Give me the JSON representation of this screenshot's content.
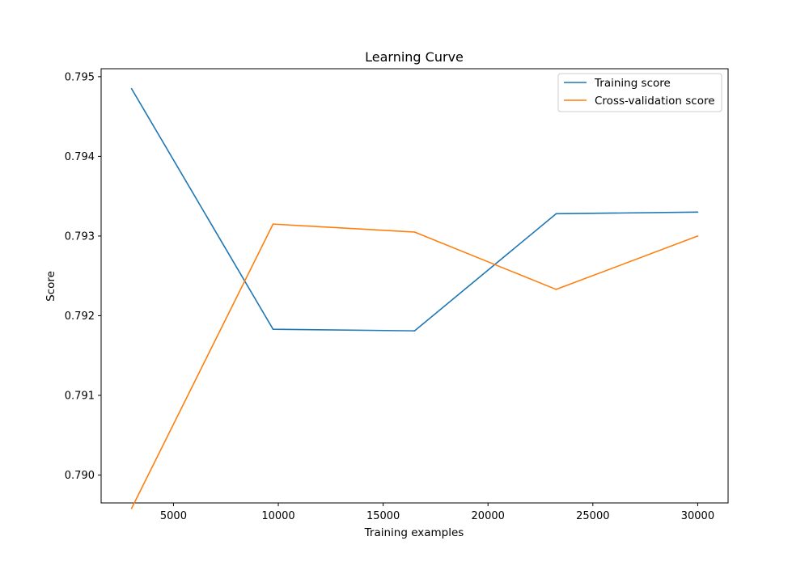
{
  "chart_data": {
    "type": "line",
    "title": "Learning Curve",
    "xlabel": "Training examples",
    "ylabel": "Score",
    "xlim": [
      1550,
      31450
    ],
    "ylim": [
      0.78965,
      0.7951
    ],
    "xticks": [
      5000,
      10000,
      15000,
      20000,
      25000,
      30000
    ],
    "xtick_labels": [
      "5000",
      "10000",
      "15000",
      "20000",
      "25000",
      "30000"
    ],
    "yticks": [
      0.79,
      0.791,
      0.792,
      0.793,
      0.794,
      0.795
    ],
    "ytick_labels": [
      "0.790",
      "0.791",
      "0.792",
      "0.793",
      "0.794",
      "0.795"
    ],
    "grid": false,
    "legend_position": "top-right",
    "x": [
      3000,
      9750,
      16500,
      23250,
      30000
    ],
    "series": [
      {
        "name": "Training score",
        "color": "#1f77b4",
        "values": [
          0.79485,
          0.79183,
          0.79181,
          0.79328,
          0.7933
        ]
      },
      {
        "name": "Cross-validation score",
        "color": "#ff7f0e",
        "values": [
          0.78958,
          0.79315,
          0.79305,
          0.79233,
          0.793
        ]
      }
    ]
  }
}
